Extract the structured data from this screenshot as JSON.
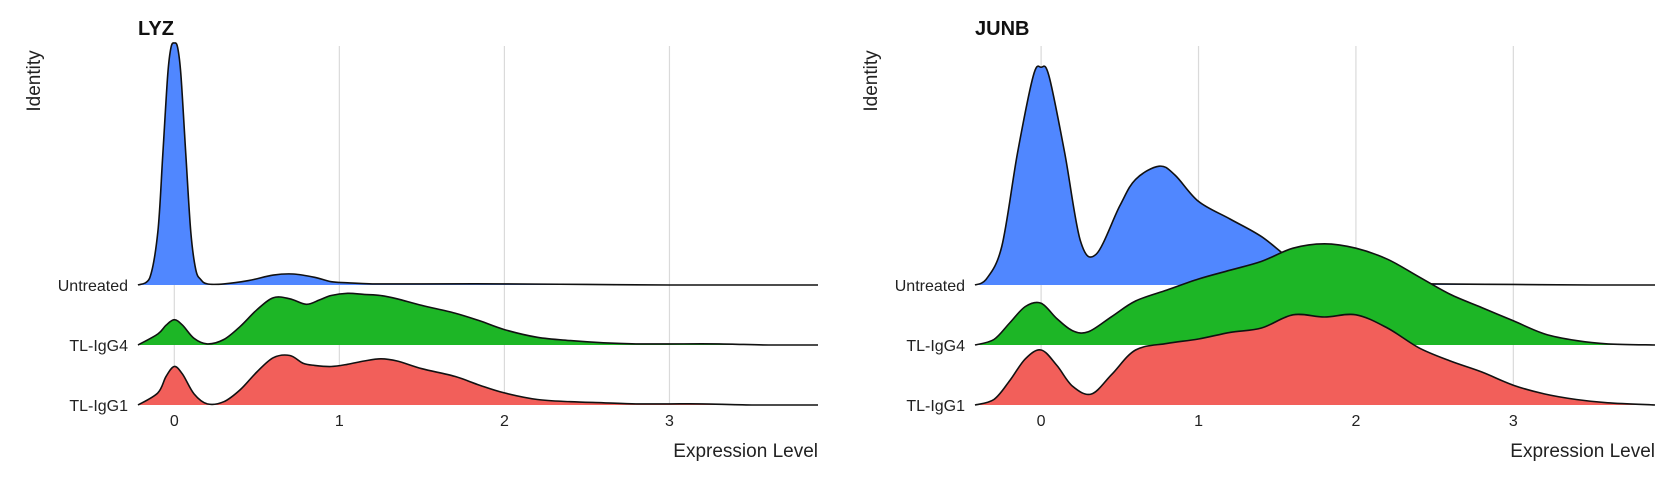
{
  "chart_data": [
    {
      "type": "ridgeline",
      "title": "LYZ",
      "xlabel": "Expression Level",
      "ylabel": "Identity",
      "xlim": [
        -0.22,
        3.9
      ],
      "xticks": [
        0,
        1,
        2,
        3
      ],
      "grid": "vertical",
      "categories": [
        "TL-IgG1",
        "TL-IgG4",
        "Untreated"
      ],
      "series": [
        {
          "name": "TL-IgG1",
          "color": "#f25f5a",
          "x": [
            -0.22,
            -0.1,
            -0.05,
            0.0,
            0.05,
            0.12,
            0.2,
            0.3,
            0.4,
            0.5,
            0.6,
            0.7,
            0.78,
            0.85,
            0.95,
            1.05,
            1.15,
            1.25,
            1.35,
            1.5,
            1.7,
            1.85,
            2.0,
            2.2,
            2.4,
            2.6,
            2.8,
            3.0,
            3.2,
            3.5,
            3.9
          ],
          "density": [
            0.0,
            0.11,
            0.26,
            0.35,
            0.28,
            0.1,
            0.01,
            0.03,
            0.14,
            0.3,
            0.43,
            0.45,
            0.38,
            0.36,
            0.35,
            0.37,
            0.4,
            0.42,
            0.4,
            0.33,
            0.26,
            0.18,
            0.11,
            0.05,
            0.03,
            0.02,
            0.01,
            0.01,
            0.01,
            0.0,
            0.0
          ]
        },
        {
          "name": "TL-IgG4",
          "color": "#1db626",
          "x": [
            -0.22,
            -0.1,
            -0.05,
            0.0,
            0.05,
            0.12,
            0.2,
            0.3,
            0.4,
            0.5,
            0.6,
            0.7,
            0.8,
            0.88,
            0.95,
            1.05,
            1.15,
            1.25,
            1.35,
            1.5,
            1.7,
            1.85,
            2.0,
            2.2,
            2.4,
            2.6,
            2.8,
            3.0,
            3.3,
            3.6,
            3.9
          ],
          "density": [
            0.0,
            0.1,
            0.18,
            0.23,
            0.18,
            0.06,
            0.01,
            0.05,
            0.17,
            0.32,
            0.43,
            0.42,
            0.37,
            0.41,
            0.45,
            0.47,
            0.46,
            0.45,
            0.42,
            0.36,
            0.29,
            0.22,
            0.14,
            0.07,
            0.04,
            0.02,
            0.01,
            0.01,
            0.01,
            0.0,
            0.0
          ]
        },
        {
          "name": "Untreated",
          "color": "#5087ff",
          "x": [
            -0.22,
            -0.15,
            -0.1,
            -0.07,
            -0.04,
            -0.02,
            0.0,
            0.02,
            0.04,
            0.07,
            0.1,
            0.13,
            0.16,
            0.2,
            0.3,
            0.45,
            0.6,
            0.72,
            0.85,
            0.95,
            1.05,
            1.2,
            1.5,
            2.0,
            2.5,
            3.0,
            3.5,
            3.9
          ],
          "density": [
            0.0,
            0.06,
            0.48,
            1.18,
            1.91,
            2.16,
            2.2,
            2.16,
            1.91,
            1.18,
            0.48,
            0.14,
            0.05,
            0.01,
            0.01,
            0.04,
            0.09,
            0.1,
            0.07,
            0.03,
            0.02,
            0.01,
            0.01,
            0.01,
            0.005,
            0.0,
            0.0,
            0.0
          ]
        }
      ]
    },
    {
      "type": "ridgeline",
      "title": "JUNB",
      "xlabel": "Expression Level",
      "ylabel": "Identity",
      "xlim": [
        -0.42,
        3.9
      ],
      "xticks": [
        0,
        1,
        2,
        3
      ],
      "grid": "vertical",
      "categories": [
        "TL-IgG1",
        "TL-IgG4",
        "Untreated"
      ],
      "series": [
        {
          "name": "TL-IgG1",
          "color": "#f25f5a",
          "x": [
            -0.42,
            -0.3,
            -0.2,
            -0.1,
            0.0,
            0.1,
            0.2,
            0.32,
            0.45,
            0.6,
            0.8,
            1.0,
            1.2,
            1.4,
            1.6,
            1.8,
            2.0,
            2.2,
            2.4,
            2.6,
            2.8,
            3.0,
            3.2,
            3.4,
            3.6,
            3.9
          ],
          "density": [
            0.0,
            0.05,
            0.22,
            0.42,
            0.5,
            0.36,
            0.17,
            0.1,
            0.28,
            0.5,
            0.56,
            0.6,
            0.66,
            0.7,
            0.82,
            0.8,
            0.82,
            0.7,
            0.52,
            0.4,
            0.3,
            0.18,
            0.1,
            0.05,
            0.02,
            0.0
          ]
        },
        {
          "name": "TL-IgG4",
          "color": "#1db626",
          "x": [
            -0.42,
            -0.3,
            -0.2,
            -0.1,
            0.0,
            0.1,
            0.2,
            0.3,
            0.45,
            0.6,
            0.8,
            1.0,
            1.2,
            1.4,
            1.6,
            1.8,
            2.0,
            2.2,
            2.4,
            2.6,
            2.8,
            3.0,
            3.2,
            3.4,
            3.6,
            3.9
          ],
          "density": [
            0.0,
            0.05,
            0.2,
            0.35,
            0.38,
            0.24,
            0.13,
            0.12,
            0.26,
            0.4,
            0.5,
            0.6,
            0.68,
            0.76,
            0.88,
            0.92,
            0.88,
            0.78,
            0.62,
            0.46,
            0.34,
            0.22,
            0.1,
            0.04,
            0.01,
            0.0
          ]
        },
        {
          "name": "Untreated",
          "color": "#5087ff",
          "x": [
            -0.42,
            -0.35,
            -0.25,
            -0.15,
            -0.05,
            0.0,
            0.05,
            0.15,
            0.25,
            0.35,
            0.5,
            0.6,
            0.75,
            0.85,
            1.0,
            1.2,
            1.4,
            1.6,
            1.8,
            2.0,
            2.2,
            2.5,
            3.0,
            3.5,
            3.9
          ],
          "density": [
            0.0,
            0.05,
            0.35,
            1.2,
            1.9,
            1.98,
            1.9,
            1.2,
            0.4,
            0.28,
            0.72,
            0.96,
            1.08,
            1.0,
            0.76,
            0.6,
            0.44,
            0.22,
            0.08,
            0.04,
            0.02,
            0.01,
            0.005,
            0.0,
            0.0
          ]
        }
      ]
    }
  ]
}
